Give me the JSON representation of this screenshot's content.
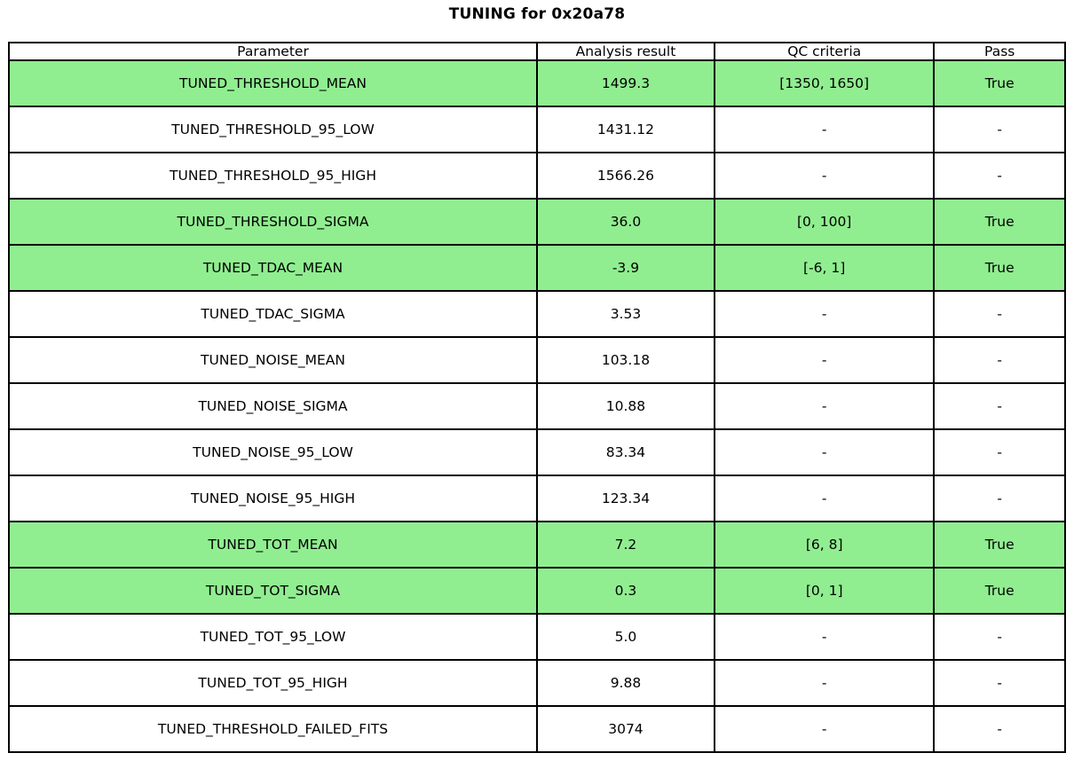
{
  "title": "TUNING for 0x20a78",
  "colors": {
    "pass_green": "#90EE90",
    "border": "#000000",
    "background": "#FFFFFF",
    "text": "#000000"
  },
  "chart_data": {
    "type": "table",
    "title": "TUNING for 0x20a78",
    "columns": [
      "Parameter",
      "Analysis result",
      "QC criteria",
      "Pass"
    ],
    "rows": [
      {
        "parameter": "TUNED_THRESHOLD_MEAN",
        "result": "1499.3",
        "qc": "[1350, 1650]",
        "pass": "True",
        "highlight": true
      },
      {
        "parameter": "TUNED_THRESHOLD_95_LOW",
        "result": "1431.12",
        "qc": "-",
        "pass": "-",
        "highlight": false
      },
      {
        "parameter": "TUNED_THRESHOLD_95_HIGH",
        "result": "1566.26",
        "qc": "-",
        "pass": "-",
        "highlight": false
      },
      {
        "parameter": "TUNED_THRESHOLD_SIGMA",
        "result": "36.0",
        "qc": "[0, 100]",
        "pass": "True",
        "highlight": true
      },
      {
        "parameter": "TUNED_TDAC_MEAN",
        "result": "-3.9",
        "qc": "[-6, 1]",
        "pass": "True",
        "highlight": true
      },
      {
        "parameter": "TUNED_TDAC_SIGMA",
        "result": "3.53",
        "qc": "-",
        "pass": "-",
        "highlight": false
      },
      {
        "parameter": "TUNED_NOISE_MEAN",
        "result": "103.18",
        "qc": "-",
        "pass": "-",
        "highlight": false
      },
      {
        "parameter": "TUNED_NOISE_SIGMA",
        "result": "10.88",
        "qc": "-",
        "pass": "-",
        "highlight": false
      },
      {
        "parameter": "TUNED_NOISE_95_LOW",
        "result": "83.34",
        "qc": "-",
        "pass": "-",
        "highlight": false
      },
      {
        "parameter": "TUNED_NOISE_95_HIGH",
        "result": "123.34",
        "qc": "-",
        "pass": "-",
        "highlight": false
      },
      {
        "parameter": "TUNED_TOT_MEAN",
        "result": "7.2",
        "qc": "[6, 8]",
        "pass": "True",
        "highlight": true
      },
      {
        "parameter": "TUNED_TOT_SIGMA",
        "result": "0.3",
        "qc": "[0, 1]",
        "pass": "True",
        "highlight": true
      },
      {
        "parameter": "TUNED_TOT_95_LOW",
        "result": "5.0",
        "qc": "-",
        "pass": "-",
        "highlight": false
      },
      {
        "parameter": "TUNED_TOT_95_HIGH",
        "result": "9.88",
        "qc": "-",
        "pass": "-",
        "highlight": false
      },
      {
        "parameter": "TUNED_THRESHOLD_FAILED_FITS",
        "result": "3074",
        "qc": "-",
        "pass": "-",
        "highlight": false
      }
    ],
    "legend_position": "none",
    "grid": true
  }
}
